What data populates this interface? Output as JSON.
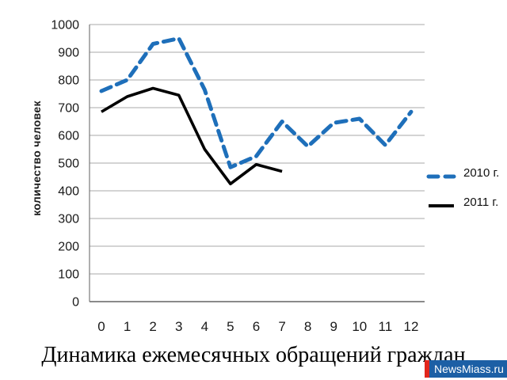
{
  "chart_data": {
    "type": "line",
    "title": "Динамика ежемесячных обращений граждан",
    "ylabel": "количество человек",
    "xlabel": "",
    "x": [
      0,
      1,
      2,
      3,
      4,
      5,
      6,
      7,
      8,
      9,
      10,
      11,
      12
    ],
    "ylim": [
      0,
      1000
    ],
    "ytick_step": 100,
    "grid": true,
    "legend_position": "right",
    "series": [
      {
        "name": "2010 г.",
        "color": "#1e6fba",
        "line_style": "dashed",
        "values": [
          760,
          800,
          930,
          950,
          765,
          485,
          525,
          650,
          560,
          645,
          660,
          565,
          685
        ]
      },
      {
        "name": "2011 г.",
        "color": "#000000",
        "line_style": "solid",
        "values": [
          685,
          740,
          770,
          745,
          550,
          425,
          495,
          470
        ]
      }
    ]
  },
  "colors": {
    "gridline": "#a8a8a8",
    "axis": "#7a7a7a",
    "tick_text": "#1a1a1a"
  },
  "watermark": {
    "label": "NewsMiass.ru",
    "bg_color": "#1c5fa5",
    "bar_color": "#e2261c"
  }
}
